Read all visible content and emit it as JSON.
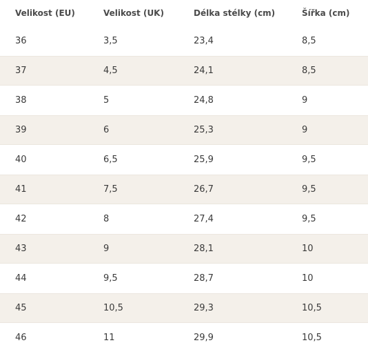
{
  "table": {
    "header": [
      "Velikost (EU)",
      "Velikost (UK)",
      "Délka stélky (cm)",
      "Šířka (cm)"
    ],
    "rows": [
      [
        "36",
        "3,5",
        "23,4",
        "8,5"
      ],
      [
        "37",
        "4,5",
        "24,1",
        "8,5"
      ],
      [
        "38",
        "5",
        "24,8",
        "9"
      ],
      [
        "39",
        "6",
        "25,3",
        "9"
      ],
      [
        "40",
        "6,5",
        "25,9",
        "9,5"
      ],
      [
        "41",
        "7,5",
        "26,7",
        "9,5"
      ],
      [
        "42",
        "8",
        "27,4",
        "9,5"
      ],
      [
        "43",
        "9",
        "28,1",
        "10"
      ],
      [
        "44",
        "9,5",
        "28,7",
        "10"
      ],
      [
        "45",
        "10,5",
        "29,3",
        "10,5"
      ],
      [
        "46",
        "11",
        "29,9",
        "10,5"
      ]
    ]
  }
}
